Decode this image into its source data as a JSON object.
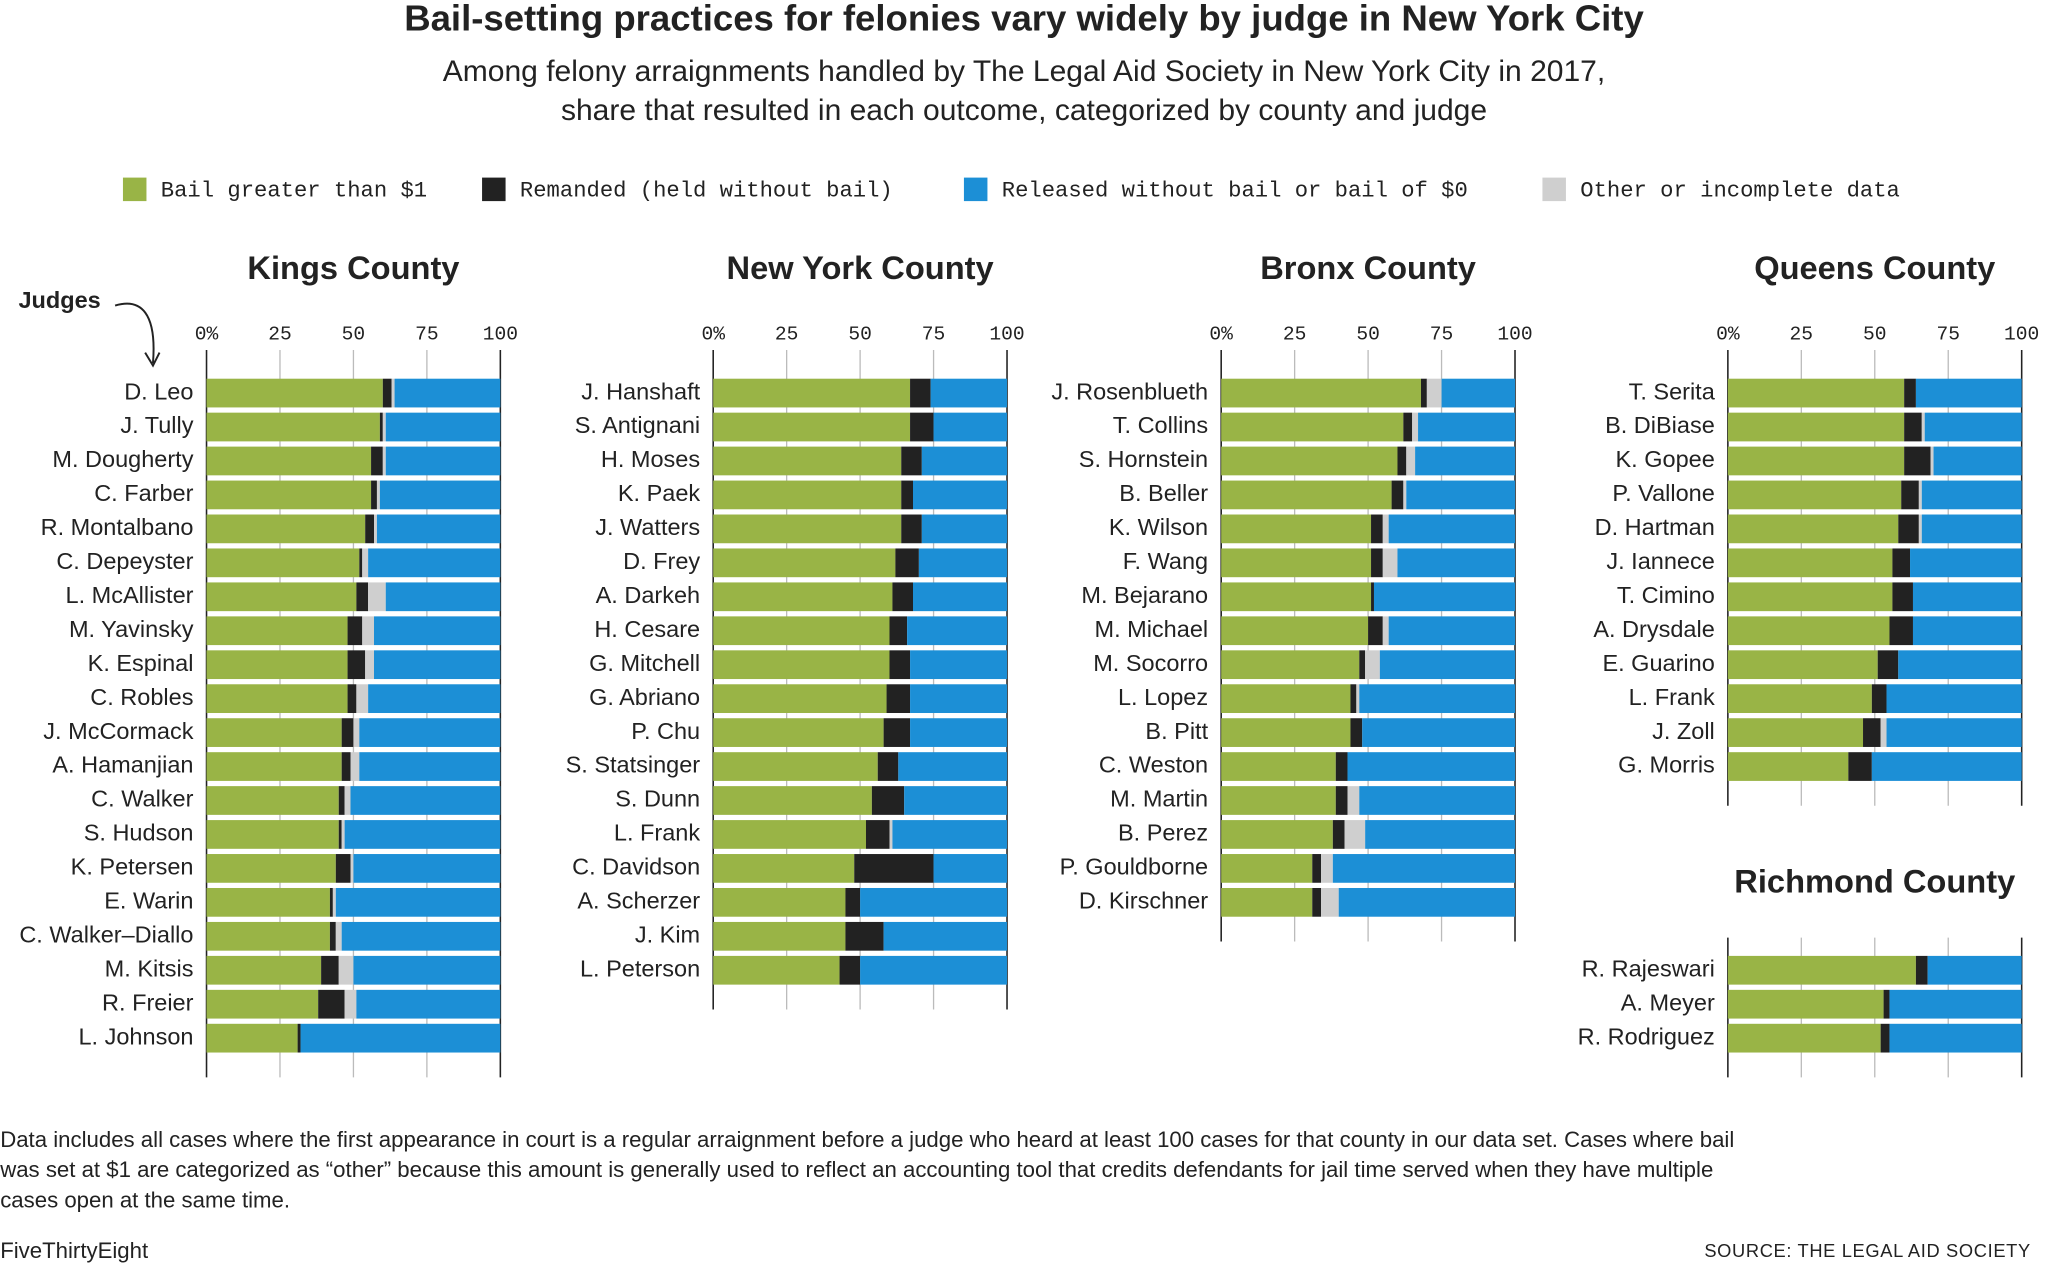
{
  "chart_data": {
    "type": "stacked_bar",
    "title": "Bail-setting practices for felonies vary widely by judge in New York City",
    "subtitle": [
      "Among felony arraignments handled by The Legal Aid Society in New York City in 2017,",
      "share that resulted in each outcome, categorized by county and judge"
    ],
    "y_label": "Judges",
    "series": [
      {
        "name": "Bail greater than $1",
        "color": "#99b446"
      },
      {
        "name": "Remanded (held without bail)",
        "color": "#222222"
      },
      {
        "name": "Released without bail or bail of $0",
        "color": "#1c8fd6"
      },
      {
        "name": "Other or incomplete data",
        "color": "#cfcfcf"
      }
    ],
    "stack_order": [
      0,
      1,
      3,
      2
    ],
    "panels": [
      {
        "title": "Kings County",
        "categories": [
          "D. Leo",
          "J. Tully",
          "M. Dougherty",
          "C. Farber",
          "R. Montalbano",
          "C. Depeyster",
          "L. McAllister",
          "M. Yavinsky",
          "K. Espinal",
          "C. Robles",
          "J. McCormack",
          "A. Hamanjian",
          "C. Walker",
          "S. Hudson",
          "K. Petersen",
          "E. Warin",
          "C. Walker–Diallo",
          "M. Kitsis",
          "R. Freier",
          "L. Johnson"
        ],
        "series": [
          {
            "values": [
              60,
              59,
              56,
              56,
              54,
              52,
              51,
              48,
              48,
              48,
              46,
              46,
              45,
              45,
              44,
              42,
              42,
              39,
              38,
              31
            ]
          },
          {
            "values": [
              3,
              1,
              4,
              2,
              3,
              1,
              4,
              5,
              6,
              3,
              4,
              3,
              2,
              1,
              5,
              1,
              2,
              6,
              9,
              1
            ]
          },
          {
            "values": [
              36,
              39,
              39,
              41,
              42,
              45,
              39,
              43,
              43,
              45,
              48,
              48,
              51,
              53,
              50,
              56,
              54,
              50,
              49,
              68
            ]
          },
          {
            "values": [
              1,
              1,
              1,
              1,
              1,
              2,
              6,
              4,
              3,
              4,
              2,
              3,
              2,
              1,
              1,
              1,
              2,
              5,
              4,
              0
            ]
          }
        ],
        "xlim": [
          0,
          100
        ],
        "xticks": [
          {
            "value": 0,
            "label": "0%"
          },
          25,
          50,
          75,
          100
        ],
        "tick_labels": true
      },
      {
        "title": "New York County",
        "categories": [
          "J. Hanshaft",
          "S. Antignani",
          "H. Moses",
          "K. Paek",
          "J. Watters",
          "D. Frey",
          "A. Darkeh",
          "H. Cesare",
          "G. Mitchell",
          "G. Abriano",
          "P. Chu",
          "S. Statsinger",
          "S. Dunn",
          "L. Frank",
          "C. Davidson",
          "A. Scherzer",
          "J. Kim",
          "L. Peterson"
        ],
        "series": [
          {
            "values": [
              67,
              67,
              64,
              64,
              64,
              62,
              61,
              60,
              60,
              59,
              58,
              56,
              54,
              52,
              48,
              45,
              45,
              43
            ]
          },
          {
            "values": [
              7,
              8,
              7,
              4,
              7,
              8,
              7,
              6,
              7,
              8,
              9,
              7,
              11,
              8,
              27,
              5,
              13,
              7
            ]
          },
          {
            "values": [
              26,
              25,
              29,
              32,
              29,
              30,
              32,
              34,
              33,
              33,
              33,
              37,
              35,
              39,
              25,
              50,
              42,
              50
            ]
          },
          {
            "values": [
              0,
              0,
              0,
              0,
              0,
              0,
              0,
              0,
              0,
              0,
              0,
              0,
              0,
              1,
              0,
              0,
              0,
              0
            ]
          }
        ],
        "xlim": [
          0,
          100
        ],
        "xticks": [
          {
            "value": 0,
            "label": "0%"
          },
          25,
          50,
          75,
          100
        ],
        "tick_labels": true
      },
      {
        "title": "Bronx County",
        "categories": [
          "J. Rosenblueth",
          "T. Collins",
          "S. Hornstein",
          "B. Beller",
          "K. Wilson",
          "F. Wang",
          "M. Bejarano",
          "M. Michael",
          "M. Socorro",
          "L. Lopez",
          "B. Pitt",
          "C. Weston",
          "M. Martin",
          "B. Perez",
          "P. Gouldborne",
          "D. Kirschner"
        ],
        "series": [
          {
            "values": [
              68,
              62,
              60,
              58,
              51,
              51,
              51,
              50,
              47,
              44,
              44,
              39,
              39,
              38,
              31,
              31
            ]
          },
          {
            "values": [
              2,
              3,
              3,
              4,
              4,
              4,
              1,
              5,
              2,
              2,
              4,
              4,
              4,
              4,
              3,
              3
            ]
          },
          {
            "values": [
              25,
              33,
              34,
              37,
              43,
              40,
              48,
              43,
              46,
              53,
              52,
              57,
              53,
              51,
              62,
              60
            ]
          },
          {
            "values": [
              5,
              2,
              3,
              1,
              2,
              5,
              0,
              2,
              5,
              1,
              0,
              0,
              4,
              7,
              4,
              6
            ]
          }
        ],
        "xlim": [
          0,
          100
        ],
        "xticks": [
          {
            "value": 0,
            "label": "0%"
          },
          25,
          50,
          75,
          100
        ],
        "tick_labels": true
      },
      {
        "title": "Queens County",
        "categories": [
          "T. Serita",
          "B. DiBiase",
          "K. Gopee",
          "P. Vallone",
          "D. Hartman",
          "J. Iannece",
          "T. Cimino",
          "A. Drysdale",
          "E. Guarino",
          "L. Frank",
          "J. Zoll",
          "G. Morris"
        ],
        "series": [
          {
            "values": [
              60,
              60,
              60,
              59,
              58,
              56,
              56,
              55,
              51,
              49,
              46,
              41
            ]
          },
          {
            "values": [
              4,
              6,
              9,
              6,
              7,
              6,
              7,
              8,
              7,
              5,
              6,
              8
            ]
          },
          {
            "values": [
              36,
              33,
              30,
              34,
              34,
              38,
              37,
              37,
              42,
              46,
              46,
              51
            ]
          },
          {
            "values": [
              0,
              1,
              1,
              1,
              1,
              0,
              0,
              0,
              0,
              0,
              2,
              0
            ]
          }
        ],
        "xlim": [
          0,
          100
        ],
        "xticks": [
          {
            "value": 0,
            "label": "0%"
          },
          25,
          50,
          75,
          100
        ],
        "tick_labels": true
      },
      {
        "title": "Richmond County",
        "categories": [
          "R. Rajeswari",
          "A. Meyer",
          "R. Rodriguez"
        ],
        "series": [
          {
            "values": [
              64,
              53,
              52
            ]
          },
          {
            "values": [
              4,
              2,
              3
            ]
          },
          {
            "values": [
              32,
              45,
              45
            ]
          },
          {
            "values": [
              0,
              0,
              0
            ]
          }
        ],
        "xlim": [
          0,
          100
        ],
        "xticks": [
          0,
          25,
          50,
          75,
          100
        ],
        "tick_labels": false
      }
    ],
    "note": [
      "Data includes all cases where the first appearance in court is a regular arraignment before a judge who heard at least 100 cases for that county in our data set. Cases where bail",
      "was set at $1 are categorized as “other” because this amount is generally used to reflect an accounting tool that credits defendants for jail time served when they have multiple",
      "cases open at the same time."
    ],
    "credit": "FiveThirtyEight",
    "source": "SOURCE: THE LEGAL AID SOCIETY"
  }
}
